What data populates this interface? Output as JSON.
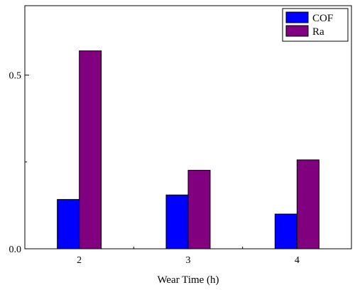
{
  "chart_data": {
    "type": "bar",
    "categories": [
      "2",
      "3",
      "4"
    ],
    "series": [
      {
        "name": "COF",
        "values": [
          0.142,
          0.155,
          0.1
        ],
        "color": "#0000ff"
      },
      {
        "name": "Ra",
        "values": [
          0.57,
          0.226,
          0.256
        ],
        "color": "#800080"
      }
    ],
    "xlabel": "Wear Time (h)",
    "ylabel": "",
    "xlim": [
      1.5,
      4.5
    ],
    "ylim": [
      0,
      0.7
    ],
    "yticks_labeled": [
      "0.0",
      "0.5"
    ],
    "yticks_labeled_values": [
      0,
      0.5
    ],
    "yticks_minor_values": [
      0.25
    ],
    "legend_position": "top-right",
    "grid": false
  }
}
